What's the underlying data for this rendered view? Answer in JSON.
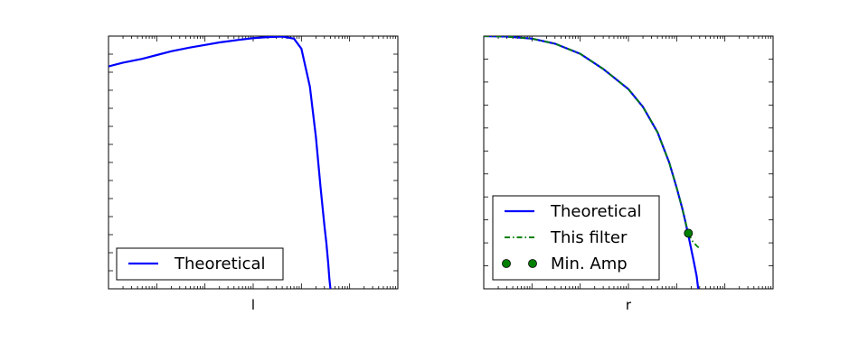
{
  "chart_data": [
    {
      "type": "line",
      "xlabel": "l",
      "ylabel": "",
      "xscale": "log",
      "yscale": "log",
      "grid": false,
      "legend": {
        "placement": "lower-left",
        "entries": [
          "Theoretical"
        ]
      },
      "series": [
        {
          "name": "Theoretical",
          "style": "solid",
          "color": "#0000ff",
          "points": [
            [
              0.1,
              0.88
            ],
            [
              0.2,
              0.895
            ],
            [
              0.5,
              0.91
            ],
            [
              1,
              0.925
            ],
            [
              2,
              0.94
            ],
            [
              5,
              0.955
            ],
            [
              10,
              0.965
            ],
            [
              20,
              0.975
            ],
            [
              50,
              0.985
            ],
            [
              100,
              0.992
            ],
            [
              200,
              0.996
            ],
            [
              400,
              0.998
            ],
            [
              700,
              0.99
            ],
            [
              1000,
              0.95
            ],
            [
              1500,
              0.8
            ],
            [
              2000,
              0.6
            ],
            [
              2500,
              0.4
            ],
            [
              3000,
              0.25
            ],
            [
              3300,
              0.18
            ],
            [
              3600,
              0.1
            ],
            [
              3800,
              0.04
            ],
            [
              4000,
              0.0
            ]
          ]
        }
      ]
    },
    {
      "type": "line",
      "xlabel": "r",
      "ylabel": "",
      "xscale": "log",
      "yscale": "log",
      "grid": false,
      "legend": {
        "placement": "lower-left",
        "entries": [
          "Theoretical",
          "This filter",
          "Min. Amp"
        ]
      },
      "series": [
        {
          "name": "Theoretical",
          "style": "solid",
          "color": "#0000ff",
          "points": [
            [
              0.1,
              1.0
            ],
            [
              0.3,
              0.998
            ],
            [
              1,
              0.99
            ],
            [
              3,
              0.97
            ],
            [
              10,
              0.93
            ],
            [
              30,
              0.87
            ],
            [
              100,
              0.79
            ],
            [
              200,
              0.72
            ],
            [
              400,
              0.62
            ],
            [
              700,
              0.5
            ],
            [
              1000,
              0.4
            ],
            [
              1300,
              0.32
            ],
            [
              1500,
              0.27
            ],
            [
              1800,
              0.2
            ],
            [
              2200,
              0.12
            ],
            [
              2600,
              0.05
            ],
            [
              2800,
              0.0
            ]
          ]
        },
        {
          "name": "This filter",
          "style": "dash-dot",
          "color": "#008000",
          "points": [
            [
              0.1,
              1.0
            ],
            [
              0.3,
              0.998
            ],
            [
              1,
              0.99
            ],
            [
              3,
              0.97
            ],
            [
              10,
              0.93
            ],
            [
              30,
              0.87
            ],
            [
              100,
              0.79
            ],
            [
              200,
              0.72
            ],
            [
              400,
              0.62
            ],
            [
              700,
              0.5
            ],
            [
              1000,
              0.4
            ],
            [
              1300,
              0.32
            ],
            [
              1500,
              0.27
            ],
            [
              1750,
              0.22
            ],
            [
              2100,
              0.19
            ],
            [
              2600,
              0.17
            ],
            [
              3000,
              0.16
            ]
          ]
        },
        {
          "name": "Min. Amp",
          "style": "marker",
          "color": "#008000",
          "points": [
            [
              1750,
              0.22
            ]
          ]
        }
      ]
    }
  ]
}
